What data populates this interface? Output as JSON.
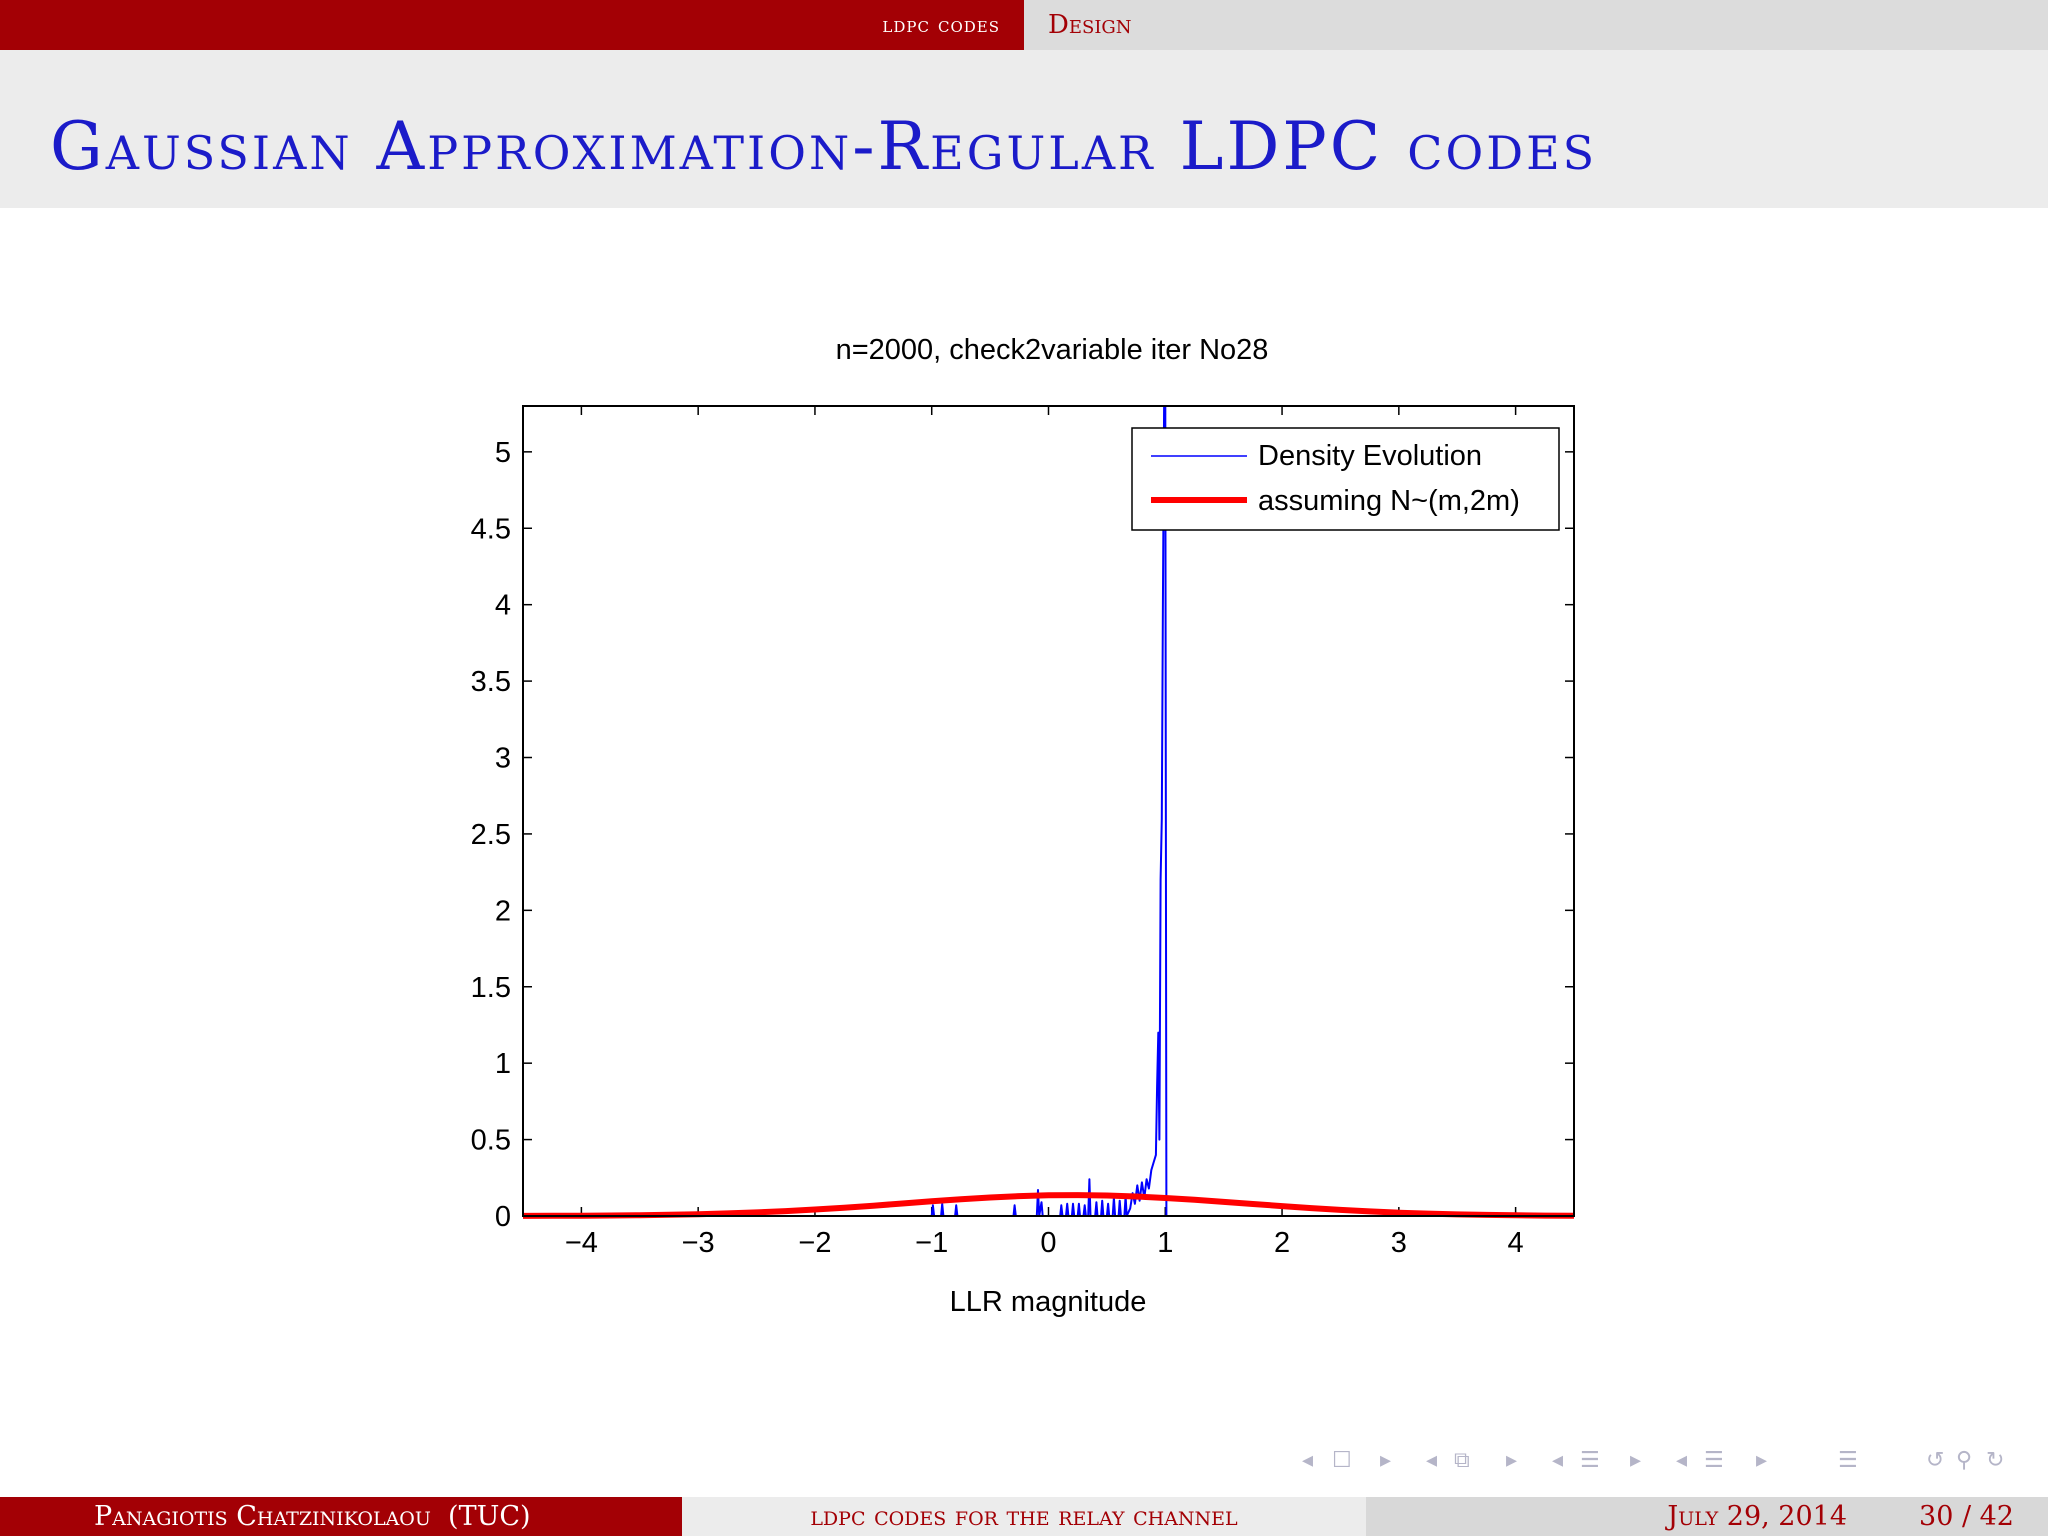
{
  "nav": {
    "section": "ldpc codes",
    "subsection": "Design"
  },
  "frame": {
    "title": "Gaussian Approximation-Regular LDPC codes"
  },
  "colors": {
    "accent": "#a30005",
    "title": "#1b1bc9",
    "series1": "#0000ff",
    "series2": "#ff0000"
  },
  "chart_data": {
    "type": "line",
    "title": "n=2000, check2variable iter No28",
    "xlabel": "LLR magnitude",
    "ylabel": "",
    "xlim": [
      -4.5,
      4.5
    ],
    "ylim": [
      0,
      5.3
    ],
    "xticks": [
      -4,
      -3,
      -2,
      -1,
      0,
      1,
      2,
      3,
      4
    ],
    "xtick_labels": [
      "−4",
      "−3",
      "−2",
      "−1",
      "0",
      "1",
      "2",
      "3",
      "4"
    ],
    "yticks": [
      0,
      0.5,
      1,
      1.5,
      2,
      2.5,
      3,
      3.5,
      4,
      4.5,
      5
    ],
    "ytick_labels": [
      "0",
      "0.5",
      "1",
      "1.5",
      "2",
      "2.5",
      "3",
      "3.5",
      "4",
      "4.5",
      "5"
    ],
    "grid": false,
    "legend_position": "top-right",
    "series": [
      {
        "name": "Density Evolution",
        "color": "#0000ff",
        "x": [
          -4.5,
          -1.0,
          -0.99,
          -0.98,
          -0.92,
          -0.91,
          -0.9,
          -0.8,
          -0.79,
          -0.78,
          -0.3,
          -0.29,
          -0.28,
          -0.1,
          -0.09,
          -0.08,
          -0.06,
          -0.05,
          -0.04,
          0.1,
          0.11,
          0.12,
          0.15,
          0.16,
          0.17,
          0.2,
          0.21,
          0.22,
          0.25,
          0.26,
          0.27,
          0.3,
          0.31,
          0.32,
          0.34,
          0.35,
          0.36,
          0.4,
          0.41,
          0.42,
          0.45,
          0.46,
          0.47,
          0.5,
          0.51,
          0.52,
          0.55,
          0.56,
          0.57,
          0.6,
          0.61,
          0.62,
          0.65,
          0.66,
          0.67,
          0.7,
          0.72,
          0.74,
          0.76,
          0.78,
          0.8,
          0.82,
          0.84,
          0.86,
          0.88,
          0.9,
          0.92,
          0.93,
          0.94,
          0.95,
          0.96,
          0.97,
          0.98,
          0.99,
          1.0,
          1.01,
          4.5
        ],
        "y": [
          0,
          0,
          0.07,
          0,
          0,
          0.08,
          0,
          0,
          0.07,
          0,
          0,
          0.07,
          0,
          0,
          0.17,
          0,
          0.09,
          0,
          0,
          0,
          0.07,
          0,
          0,
          0.08,
          0,
          0,
          0.08,
          0,
          0,
          0.08,
          0,
          0,
          0.07,
          0,
          0,
          0.24,
          0,
          0,
          0.09,
          0,
          0,
          0.1,
          0,
          0,
          0.08,
          0,
          0,
          0.12,
          0,
          0,
          0.1,
          0,
          0,
          0.13,
          0,
          0.05,
          0.15,
          0.08,
          0.2,
          0.1,
          0.22,
          0.12,
          0.24,
          0.18,
          0.3,
          0.35,
          0.4,
          0.85,
          1.2,
          0.5,
          2.2,
          2.6,
          4.0,
          5.3,
          5.3,
          0,
          0
        ]
      },
      {
        "name": "assuming N~(m,2m)",
        "color": "#ff0000",
        "x": [
          -4.5,
          -4.25,
          -4.0,
          -3.75,
          -3.5,
          -3.25,
          -3.0,
          -2.75,
          -2.5,
          -2.25,
          -2.0,
          -1.75,
          -1.5,
          -1.25,
          -1.0,
          -0.75,
          -0.5,
          -0.25,
          0.0,
          0.25,
          0.5,
          0.75,
          1.0,
          1.25,
          1.5,
          1.75,
          2.0,
          2.25,
          2.5,
          2.75,
          3.0,
          3.25,
          3.5,
          3.75,
          4.0,
          4.25,
          4.5
        ],
        "y": [
          0.0006,
          0.0011,
          0.0019,
          0.0031,
          0.005,
          0.0077,
          0.0116,
          0.0168,
          0.0236,
          0.0321,
          0.0424,
          0.0544,
          0.0677,
          0.0818,
          0.096,
          0.1094,
          0.121,
          0.13,
          0.1354,
          0.1369,
          0.1343,
          0.1277,
          0.118,
          0.106,
          0.0925,
          0.0784,
          0.0646,
          0.0516,
          0.04,
          0.0301,
          0.0219,
          0.0155,
          0.0106,
          0.007,
          0.0045,
          0.0028,
          0.0017
        ]
      }
    ]
  },
  "navsyms": {
    "frame_left": "◂",
    "frame_icon": "☐",
    "frame_right": "▸",
    "sub_left": "◂",
    "sub_icon": "⧉",
    "sub_right": "▸",
    "sec_left": "◂",
    "sec_icon": "☰",
    "sec_right": "▸",
    "doc_left": "◂",
    "doc_icon": "☰",
    "doc_right": "▸",
    "align_icon": "☰",
    "back_icon": "↺",
    "search_icon": "⚲",
    "fwd_icon": "↻"
  },
  "footer": {
    "author": "Panagiotis Chatzinikolaou  (TUC)",
    "short_title": "ldpc codes for the relay channel",
    "date": "July 29, 2014",
    "page": "30 / 42"
  }
}
